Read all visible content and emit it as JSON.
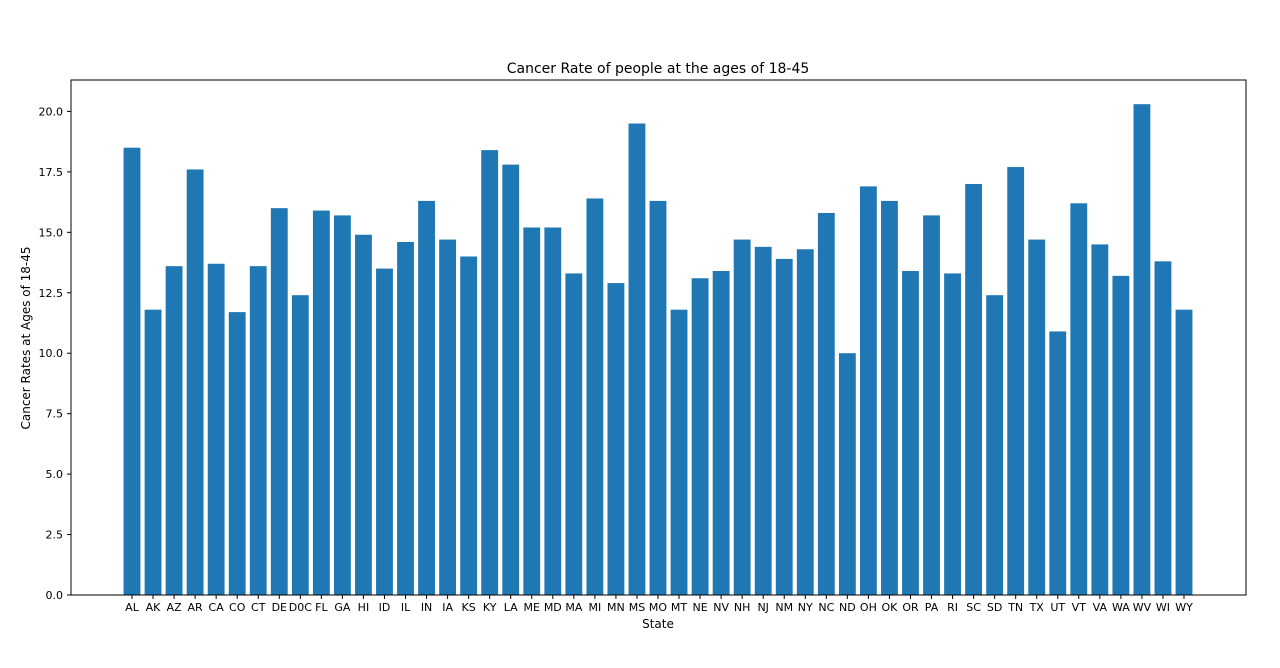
{
  "chart_data": {
    "type": "bar",
    "title": "Cancer Rate of people at the ages of 18-45",
    "xlabel": "State",
    "ylabel": "Cancer Rates at Ages of 18-45",
    "ylim": [
      0,
      21.3
    ],
    "yticks": [
      0.0,
      2.5,
      5.0,
      7.5,
      10.0,
      12.5,
      15.0,
      17.5,
      20.0
    ],
    "ytick_labels": [
      "0.0",
      "2.5",
      "5.0",
      "7.5",
      "10.0",
      "12.5",
      "15.0",
      "17.5",
      "20.0"
    ],
    "grid": false,
    "bar_color": "#1f77b4",
    "categories": [
      "AL",
      "AK",
      "AZ",
      "AR",
      "CA",
      "CO",
      "CT",
      "DE",
      "D0C",
      "FL",
      "GA",
      "HI",
      "ID",
      "IL",
      "IN",
      "IA",
      "KS",
      "KY",
      "LA",
      "ME",
      "MD",
      "MA",
      "MI",
      "MN",
      "MS",
      "MO",
      "MT",
      "NE",
      "NV",
      "NH",
      "NJ",
      "NM",
      "NY",
      "NC",
      "ND",
      "OH",
      "OK",
      "OR",
      "PA",
      "RI",
      "SC",
      "SD",
      "TN",
      "TX",
      "UT",
      "VT",
      "VA",
      "WA",
      "WV",
      "WI",
      "WY"
    ],
    "values": [
      18.5,
      11.8,
      13.6,
      17.6,
      13.7,
      11.7,
      13.6,
      16.0,
      12.4,
      15.9,
      15.7,
      14.9,
      13.5,
      14.6,
      16.3,
      14.7,
      14.0,
      18.4,
      17.8,
      15.2,
      15.2,
      13.3,
      16.4,
      12.9,
      19.5,
      16.3,
      11.8,
      13.1,
      13.4,
      14.7,
      14.4,
      13.9,
      14.3,
      15.8,
      10.0,
      16.9,
      16.3,
      13.4,
      15.7,
      13.3,
      17.0,
      12.4,
      17.7,
      14.7,
      10.9,
      16.2,
      14.5,
      13.2,
      20.3,
      13.8,
      11.8
    ]
  }
}
